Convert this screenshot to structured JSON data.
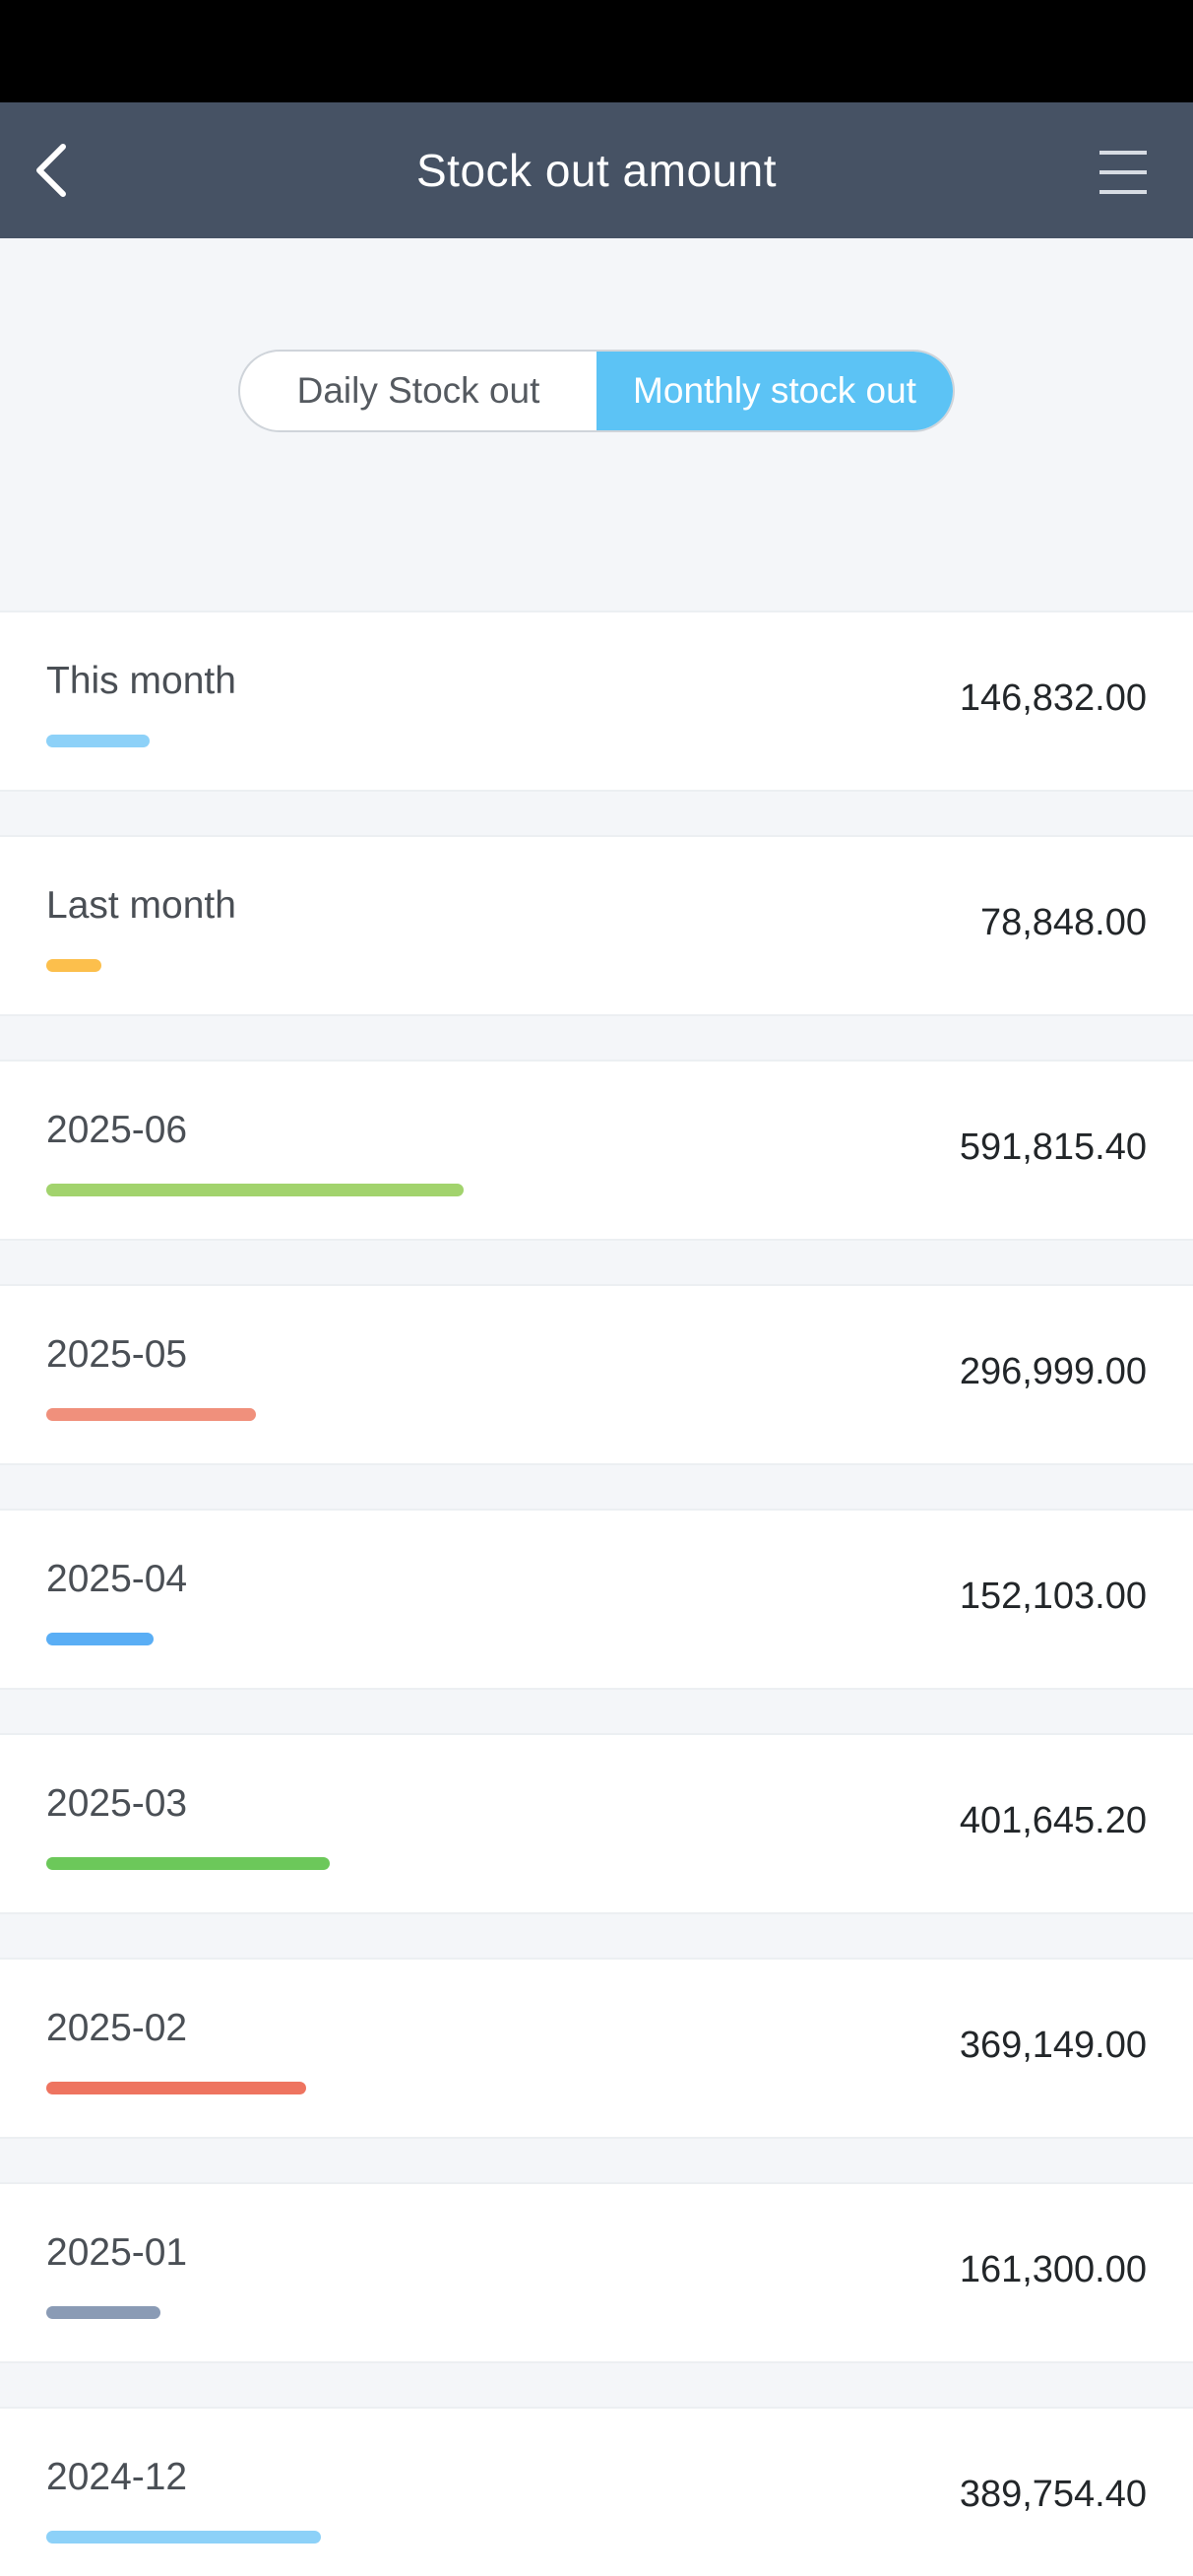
{
  "header": {
    "title": "Stock out amount"
  },
  "toggle": {
    "daily_label": "Daily Stock out",
    "monthly_label": "Monthly stock out",
    "active": "monthly"
  },
  "max_amount": 591815.4,
  "rows": [
    {
      "label": "This month",
      "value": "146,832.00",
      "amount": 146832.0,
      "color": "#8dd1f8"
    },
    {
      "label": "Last month",
      "value": "78,848.00",
      "amount": 78848.0,
      "color": "#fcbf4c"
    },
    {
      "label": "2025-06",
      "value": "591,815.40",
      "amount": 591815.4,
      "color": "#a2d36d"
    },
    {
      "label": "2025-05",
      "value": "296,999.00",
      "amount": 296999.0,
      "color": "#f0907c"
    },
    {
      "label": "2025-04",
      "value": "152,103.00",
      "amount": 152103.0,
      "color": "#5aaef5"
    },
    {
      "label": "2025-03",
      "value": "401,645.20",
      "amount": 401645.2,
      "color": "#6cc85a"
    },
    {
      "label": "2025-02",
      "value": "369,149.00",
      "amount": 369149.0,
      "color": "#ee7460"
    },
    {
      "label": "2025-01",
      "value": "161,300.00",
      "amount": 161300.0,
      "color": "#8a9bb5"
    },
    {
      "label": "2024-12",
      "value": "389,754.40",
      "amount": 389754.4,
      "color": "#8dd1f8"
    }
  ]
}
